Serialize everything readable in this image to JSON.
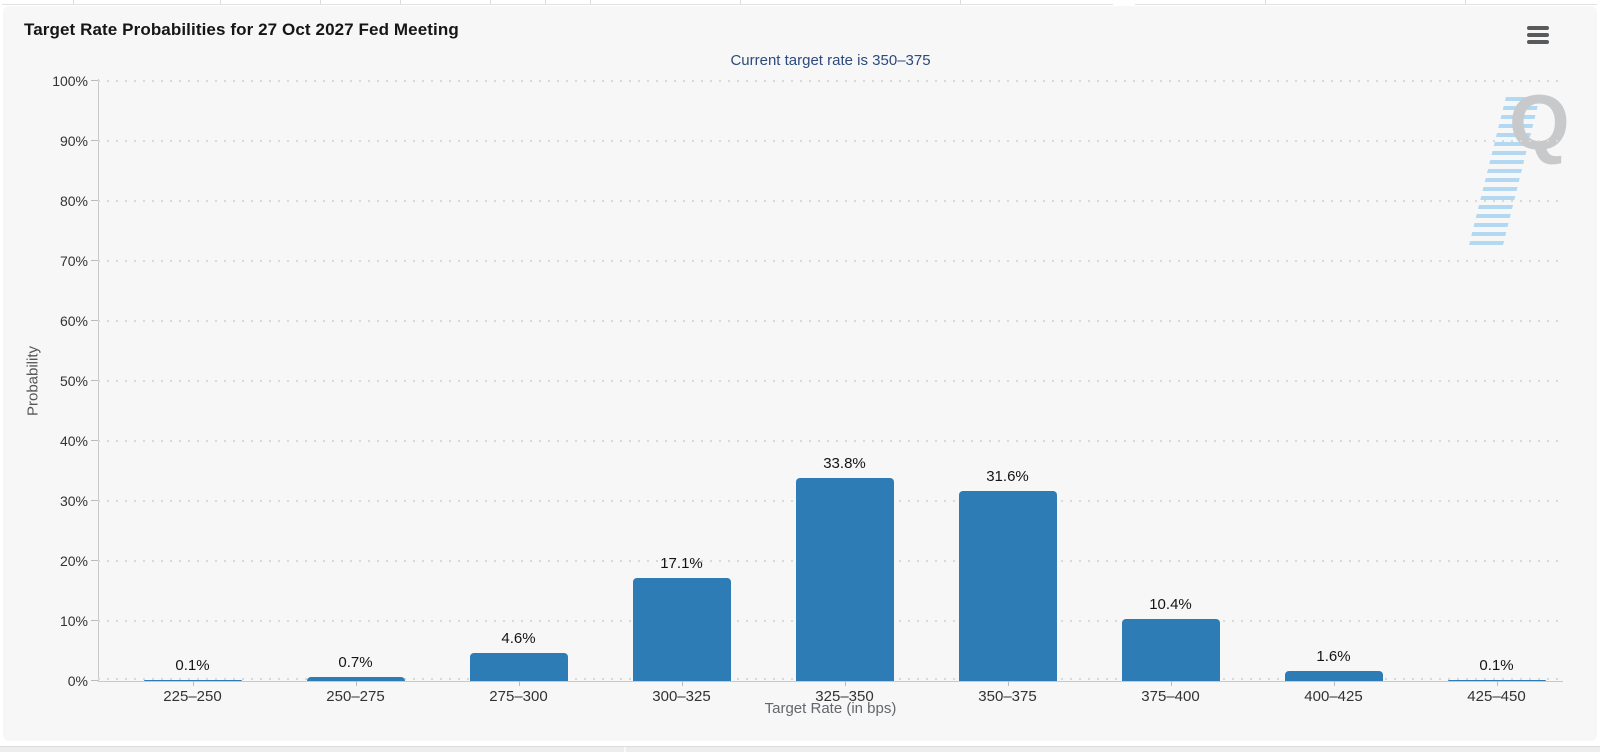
{
  "page": {
    "menu_icon": "hamburger-menu",
    "watermark_letter": "Q"
  },
  "chart_data": {
    "type": "bar",
    "title": "Target Rate Probabilities for 27 Oct 2027 Fed Meeting",
    "subtitle": "Current target rate is 350–375",
    "xlabel": "Target Rate (in bps)",
    "ylabel": "Probability",
    "categories": [
      "225–250",
      "250–275",
      "275–300",
      "300–325",
      "325–350",
      "350–375",
      "375–400",
      "400–425",
      "425–450"
    ],
    "values": [
      0.1,
      0.7,
      4.6,
      17.1,
      33.8,
      31.6,
      10.4,
      1.6,
      0.1
    ],
    "value_labels": [
      "0.1%",
      "0.7%",
      "4.6%",
      "17.1%",
      "33.8%",
      "31.6%",
      "10.4%",
      "1.6%",
      "0.1%"
    ],
    "ylim": [
      0,
      100
    ],
    "ytick_interval": 10,
    "ytick_labels": [
      "0%",
      "10%",
      "20%",
      "30%",
      "40%",
      "50%",
      "60%",
      "70%",
      "80%",
      "90%",
      "100%"
    ],
    "grid": "horizontal-dotted",
    "legend": "none",
    "bar_color": "#2e7cb6",
    "card_background": "#f7f7f8",
    "subtitle_color": "#2d4a7c"
  }
}
